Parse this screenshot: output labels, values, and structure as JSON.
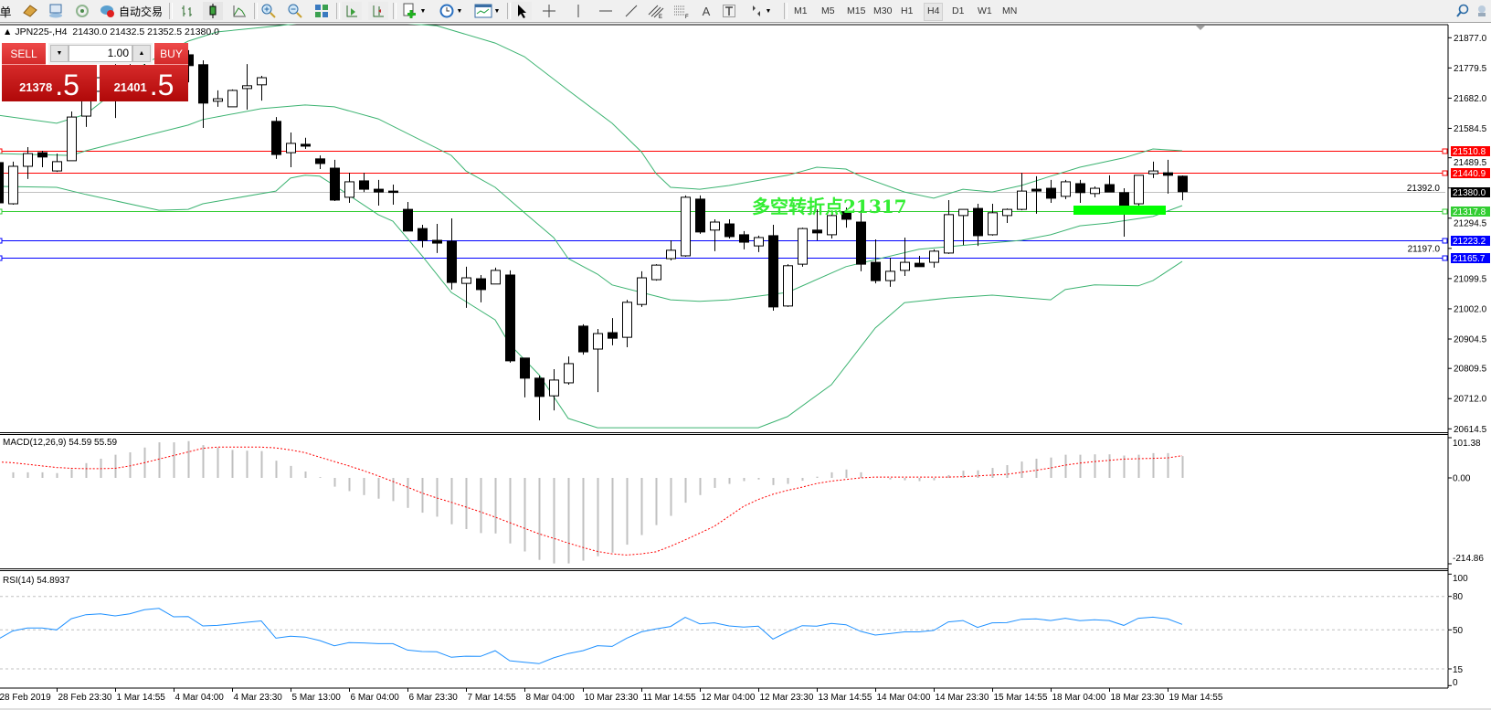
{
  "toolbar": {
    "cut_label": "单",
    "autotrade_label": "自动交易",
    "timeframes": [
      "M1",
      "M5",
      "M15",
      "M30",
      "H1",
      "H4",
      "D1",
      "W1",
      "MN"
    ],
    "active_timeframe": "H4"
  },
  "chart_header": {
    "symbol": "JPN225-,H4",
    "open": "21430.0",
    "high": "21432.5",
    "low": "21352.5",
    "close": "21380.0"
  },
  "trade_panel": {
    "sell_label": "SELL",
    "buy_label": "BUY",
    "lot": "1.00",
    "sell_price_main": "21378",
    "sell_price_frac": ".5",
    "buy_price_main": "21401",
    "buy_price_frac": ".5"
  },
  "annotation": {
    "text": "多空转折点21317",
    "color": "#33ee33"
  },
  "price_axis": {
    "ticks": [
      "21877.0",
      "21779.5",
      "21682.0",
      "21584.5",
      "21489.5",
      "21392.0",
      "21294.5",
      "21197.0",
      "21099.5",
      "21002.0",
      "20904.5",
      "20809.5",
      "20712.0",
      "20614.5"
    ],
    "levels": [
      {
        "value": "21510.8",
        "color": "#ff0000",
        "text_color": "#ffffff"
      },
      {
        "value": "21440.9",
        "color": "#ff0000",
        "text_color": "#ffffff"
      },
      {
        "value": "21380.0",
        "color": "#000000",
        "text_color": "#ffffff",
        "line_color": "#c0c0c0"
      },
      {
        "value": "21317.8",
        "color": "#32cd32",
        "text_color": "#ffffff"
      },
      {
        "value": "21223.2",
        "color": "#0000ff",
        "text_color": "#ffffff"
      },
      {
        "value": "21165.7",
        "color": "#0000ff",
        "text_color": "#ffffff"
      }
    ]
  },
  "macd_panel": {
    "label": "MACD(12,26,9) 54.59 55.59",
    "ticks": [
      "101.38",
      "0.00",
      "-214.86"
    ],
    "hist_color": "#c0c0c0",
    "signal_color": "#ff0000"
  },
  "rsi_panel": {
    "label": "RSI(14) 54.8937",
    "ticks": [
      "100",
      "80",
      "50",
      "15",
      "0"
    ],
    "levels": [
      80,
      50,
      15
    ],
    "line_color": "#1e90ff"
  },
  "time_axis": {
    "labels": [
      "28 Feb 2019",
      "28 Feb 23:30",
      "1 Mar 14:55",
      "4 Mar 04:00",
      "4 Mar 23:30",
      "5 Mar 13:00",
      "6 Mar 04:00",
      "6 Mar 23:30",
      "7 Mar 14:55",
      "8 Mar 04:00",
      "10 Mar 23:30",
      "11 Mar 14:55",
      "12 Mar 04:00",
      "12 Mar 23:30",
      "13 Mar 14:55",
      "14 Mar 04:00",
      "14 Mar 23:30",
      "15 Mar 14:55",
      "18 Mar 04:00",
      "18 Mar 23:30",
      "19 Mar 14:55"
    ]
  },
  "chart_data": {
    "type": "candlestick",
    "symbol": "JPN225-",
    "timeframe": "H4",
    "ylim": [
      20614.5,
      21877.0
    ],
    "colors": {
      "bull": "#ffffff",
      "bear": "#000000",
      "outline": "#000000",
      "bands": "#3cb371"
    },
    "ohlc": [
      [
        21474,
        21483,
        21338,
        21344
      ],
      [
        21341,
        21477,
        21338,
        21462
      ],
      [
        21462,
        21524,
        21421,
        21503
      ],
      [
        21506,
        21512,
        21459,
        21492
      ],
      [
        21447,
        21503,
        21444,
        21477
      ],
      [
        21480,
        21639,
        21480,
        21621
      ],
      [
        21624,
        21704,
        21589,
        21680
      ],
      [
        21704,
        21778,
        21680,
        21748
      ],
      [
        21733,
        21792,
        21618,
        21704
      ],
      [
        21704,
        21792,
        21686,
        21763
      ],
      [
        21763,
        21807,
        21704,
        21719
      ],
      [
        21719,
        21822,
        21704,
        21792
      ],
      [
        21787,
        21851,
        21748,
        21822
      ],
      [
        21822,
        21837,
        21733,
        21787
      ],
      [
        21790,
        21804,
        21586,
        21666
      ],
      [
        21672,
        21707,
        21654,
        21680
      ],
      [
        21654,
        21710,
        21654,
        21707
      ],
      [
        21713,
        21792,
        21645,
        21722
      ],
      [
        21725,
        21754,
        21674,
        21748
      ],
      [
        21607,
        21621,
        21486,
        21500
      ],
      [
        21506,
        21571,
        21459,
        21536
      ],
      [
        21533,
        21554,
        21518,
        21527
      ],
      [
        21486,
        21497,
        21453,
        21471
      ],
      [
        21456,
        21483,
        21350,
        21353
      ],
      [
        21362,
        21441,
        21344,
        21412
      ],
      [
        21415,
        21441,
        21379,
        21388
      ],
      [
        21388,
        21418,
        21335,
        21379
      ],
      [
        21382,
        21403,
        21338,
        21379
      ],
      [
        21323,
        21347,
        21253,
        21253
      ],
      [
        21261,
        21273,
        21200,
        21223
      ],
      [
        21223,
        21276,
        21182,
        21214
      ],
      [
        21220,
        21294,
        21064,
        21087
      ],
      [
        21084,
        21138,
        21005,
        21102
      ],
      [
        21099,
        21111,
        21023,
        21064
      ],
      [
        21082,
        21135,
        21082,
        21126
      ],
      [
        21111,
        21126,
        20828,
        20834
      ],
      [
        20843,
        20843,
        20716,
        20778
      ],
      [
        20778,
        20786,
        20642,
        20719
      ],
      [
        20721,
        20807,
        20674,
        20772
      ],
      [
        20763,
        20848,
        20757,
        20825
      ],
      [
        20946,
        20952,
        20854,
        20863
      ],
      [
        20872,
        20937,
        20733,
        20922
      ],
      [
        20925,
        20972,
        20884,
        20907
      ],
      [
        20910,
        21031,
        20878,
        21023
      ],
      [
        21016,
        21123,
        21008,
        21102
      ],
      [
        21096,
        21146,
        21093,
        21143
      ],
      [
        21164,
        21223,
        21158,
        21191
      ],
      [
        21173,
        21368,
        21170,
        21362
      ],
      [
        21356,
        21368,
        21244,
        21250
      ],
      [
        21256,
        21291,
        21188,
        21282
      ],
      [
        21276,
        21291,
        21229,
        21235
      ],
      [
        21241,
        21253,
        21194,
        21217
      ],
      [
        21205,
        21238,
        21185,
        21232
      ],
      [
        21238,
        21273,
        20996,
        21008
      ],
      [
        21011,
        21146,
        21008,
        21141
      ],
      [
        21146,
        21264,
        21138,
        21261
      ],
      [
        21256,
        21323,
        21223,
        21247
      ],
      [
        21241,
        21312,
        21229,
        21303
      ],
      [
        21315,
        21329,
        21264,
        21291
      ],
      [
        21282,
        21320,
        21123,
        21146
      ],
      [
        21152,
        21226,
        21084,
        21093
      ],
      [
        21093,
        21167,
        21073,
        21123
      ],
      [
        21126,
        21232,
        21108,
        21152
      ],
      [
        21149,
        21173,
        21138,
        21138
      ],
      [
        21152,
        21194,
        21135,
        21188
      ],
      [
        21182,
        21353,
        21179,
        21306
      ],
      [
        21303,
        21323,
        21208,
        21323
      ],
      [
        21326,
        21341,
        21205,
        21238
      ],
      [
        21241,
        21341,
        21238,
        21312
      ],
      [
        21303,
        21326,
        21279,
        21323
      ],
      [
        21323,
        21441,
        21320,
        21382
      ],
      [
        21388,
        21430,
        21309,
        21382
      ],
      [
        21391,
        21418,
        21344,
        21359
      ],
      [
        21365,
        21418,
        21356,
        21412
      ],
      [
        21406,
        21418,
        21344,
        21377
      ],
      [
        21374,
        21397,
        21362,
        21391
      ],
      [
        21403,
        21433,
        21379,
        21379
      ],
      [
        21377,
        21391,
        21235,
        21335
      ],
      [
        21341,
        21433,
        21335,
        21433
      ],
      [
        21438,
        21477,
        21424,
        21447
      ],
      [
        21441,
        21483,
        21374,
        21433
      ],
      [
        21430,
        21432.5,
        21352.5,
        21380
      ]
    ],
    "bollinger": {
      "upper": [
        [
          0,
          21627
        ],
        [
          4,
          21601
        ],
        [
          6,
          21630
        ],
        [
          8,
          21704
        ],
        [
          10,
          21792
        ],
        [
          13,
          21866
        ],
        [
          15,
          21896
        ],
        [
          18,
          21910
        ],
        [
          21,
          21925
        ],
        [
          25,
          21934
        ],
        [
          28,
          21922
        ],
        [
          30,
          21916
        ],
        [
          34,
          21860
        ],
        [
          36,
          21816
        ],
        [
          39,
          21707
        ],
        [
          42,
          21601
        ],
        [
          44,
          21509
        ],
        [
          45,
          21439
        ],
        [
          46,
          21394
        ],
        [
          48,
          21388
        ],
        [
          50,
          21400
        ],
        [
          54,
          21433
        ],
        [
          56,
          21459
        ],
        [
          58,
          21453
        ],
        [
          59,
          21430
        ],
        [
          62,
          21379
        ],
        [
          64,
          21359
        ],
        [
          66,
          21388
        ],
        [
          68,
          21379
        ],
        [
          70,
          21400
        ],
        [
          72,
          21430
        ],
        [
          74,
          21459
        ],
        [
          77,
          21489
        ],
        [
          79,
          21518
        ],
        [
          81,
          21512
        ]
      ],
      "middle": [
        [
          0,
          21503
        ],
        [
          5,
          21497
        ],
        [
          6,
          21512
        ],
        [
          8,
          21536
        ],
        [
          13,
          21595
        ],
        [
          14,
          21613
        ],
        [
          18,
          21648
        ],
        [
          21,
          21660
        ],
        [
          23,
          21654
        ],
        [
          26,
          21615
        ],
        [
          31,
          21497
        ],
        [
          32,
          21447
        ],
        [
          34,
          21394
        ],
        [
          36,
          21312
        ],
        [
          38,
          21232
        ],
        [
          39,
          21164
        ],
        [
          41,
          21114
        ],
        [
          42,
          21079
        ],
        [
          44,
          21055
        ],
        [
          46,
          21031
        ],
        [
          48,
          21026
        ],
        [
          50,
          21031
        ],
        [
          54,
          21055
        ],
        [
          58,
          21138
        ],
        [
          63,
          21194
        ],
        [
          67,
          21211
        ],
        [
          70,
          21223
        ],
        [
          72,
          21241
        ],
        [
          74,
          21270
        ],
        [
          76,
          21279
        ],
        [
          79,
          21300
        ],
        [
          81,
          21335
        ]
      ],
      "lower": [
        [
          0,
          21397
        ],
        [
          4,
          21394
        ],
        [
          6,
          21371
        ],
        [
          11,
          21320
        ],
        [
          13,
          21323
        ],
        [
          14,
          21341
        ],
        [
          19,
          21382
        ],
        [
          20,
          21424
        ],
        [
          21,
          21433
        ],
        [
          22,
          21430
        ],
        [
          23,
          21400
        ],
        [
          26,
          21306
        ],
        [
          27,
          21285
        ],
        [
          29,
          21173
        ],
        [
          31,
          21055
        ],
        [
          34,
          20966
        ],
        [
          35,
          20887
        ],
        [
          37,
          20789
        ],
        [
          39,
          20648
        ],
        [
          41,
          20618
        ],
        [
          52,
          20618
        ],
        [
          54,
          20654
        ],
        [
          57,
          20757
        ],
        [
          60,
          20940
        ],
        [
          62,
          21022
        ],
        [
          65,
          21037
        ],
        [
          68,
          21046
        ],
        [
          72,
          21031
        ],
        [
          73,
          21064
        ],
        [
          75,
          21079
        ],
        [
          78,
          21076
        ],
        [
          79,
          21093
        ],
        [
          81,
          21155
        ]
      ]
    },
    "macd": {
      "range": [
        -214.86,
        101.38
      ],
      "main": [
        14,
        14,
        14,
        14,
        12,
        22,
        37,
        48,
        58,
        64,
        76,
        89,
        89,
        92,
        82,
        76,
        70,
        68,
        67,
        43,
        30,
        16,
        2,
        -22,
        -33,
        -43,
        -52,
        -58,
        -75,
        -87,
        -97,
        -116,
        -128,
        -138,
        -139,
        -164,
        -184,
        -205,
        -214,
        -214,
        -207,
        -196,
        -187,
        -167,
        -143,
        -118,
        -95,
        -62,
        -43,
        -25,
        -15,
        -8,
        -4,
        -18,
        -15,
        -7,
        3,
        14,
        21,
        14,
        0,
        -4,
        -6,
        -8,
        -6,
        7,
        18,
        19,
        25,
        32,
        41,
        48,
        51,
        58,
        58,
        59,
        59,
        56,
        58,
        62,
        62,
        54.59
      ],
      "signal": [
        40,
        38,
        34,
        30,
        26,
        24,
        23,
        23,
        24,
        30,
        38,
        47,
        56,
        65,
        74,
        77,
        77,
        77,
        77,
        75,
        70,
        63,
        52,
        41,
        30,
        18,
        5,
        -9,
        -23,
        -38,
        -50,
        -61,
        -73,
        -85,
        -98,
        -112,
        -126,
        -140,
        -151,
        -163,
        -174,
        -184,
        -190,
        -193,
        -190,
        -185,
        -171,
        -155,
        -138,
        -121,
        -96,
        -71,
        -54,
        -41,
        -31,
        -23,
        -14,
        -8,
        -4,
        0,
        2,
        2,
        2,
        2,
        2,
        2,
        3,
        5,
        7,
        9,
        14,
        19,
        25,
        32,
        37,
        41,
        44,
        47,
        48,
        49,
        50,
        55.59
      ]
    },
    "rsi": {
      "period": 14,
      "range": [
        0,
        100
      ],
      "values": [
        41.7,
        49,
        51.6,
        51.6,
        50,
        60,
        63.6,
        64.4,
        62.5,
        64.4,
        68,
        69.3,
        61.7,
        62,
        53.5,
        54,
        55.4,
        56.8,
        58,
        42.5,
        44.3,
        43.5,
        40.4,
        35.7,
        38.6,
        38.3,
        37.6,
        37.6,
        31.9,
        30.6,
        30.3,
        25.4,
        26.4,
        26.2,
        31.3,
        22.3,
        21,
        19.7,
        24.9,
        28.8,
        31.3,
        35.8,
        35.2,
        42.5,
        48.2,
        50.8,
        53,
        61.2,
        55.4,
        56.3,
        53.5,
        52.5,
        53.3,
        41.7,
        48.2,
        53.8,
        53.3,
        55.7,
        54.6,
        48.7,
        45.3,
        46.6,
        48.2,
        48.2,
        49.5,
        57.1,
        58.4,
        52.2,
        56.3,
        56.5,
        59.5,
        59.8,
        58.4,
        60.4,
        58.2,
        59,
        58.4,
        54,
        60.4,
        61.4,
        59.8,
        54.8937
      ]
    }
  }
}
